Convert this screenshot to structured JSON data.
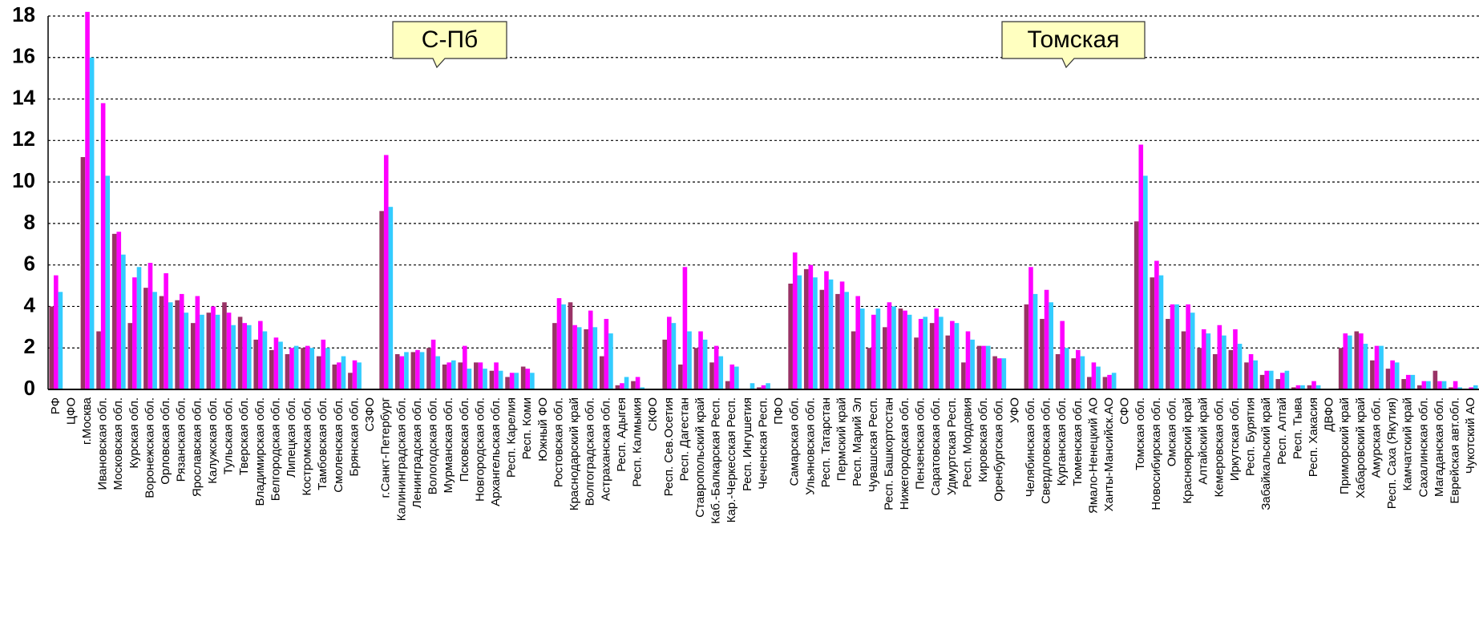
{
  "chart_data": {
    "type": "bar",
    "annotations": [
      "С-Пб",
      "Томская"
    ],
    "categories": [
      "РФ",
      "ЦФО",
      "г.Москва",
      "Ивановская обл.",
      "Московская обл.",
      "Курская обл.",
      "Воронежская обл.",
      "Орловская обл.",
      "Рязанская обл.",
      "Ярославская обл.",
      "Калужская обл.",
      "Тульская обл.",
      "Тверская обл.",
      "Владимирская обл.",
      "Белгородская обл.",
      "Липецкая обл.",
      "Костромская обл.",
      "Тамбовская обл.",
      "Смоленская обл.",
      "Брянская обл.",
      "СЗФО",
      "г.Санкт-Петербург",
      "Калининградская обл.",
      "Ленинградская обл.",
      "Вологодская обл.",
      "Мурманская обл.",
      "Псковская обл.",
      "Новгородская обл.",
      "Архангельская обл.",
      "Респ. Карелия",
      "Респ. Коми",
      "Южный ФО",
      "Ростовская обл.",
      "Краснодарский край",
      "Волгоградская обл.",
      "Астраханская обл.",
      "Респ. Адыгея",
      "Респ. Калмыкия",
      "СКФО",
      "Респ. Сев.Осетия",
      "Респ. Дагестан",
      "Ставропольский край",
      "Каб.-Балкарская Респ.",
      "Кар.-Черкесская Респ.",
      "Респ. Ингушетия",
      "Чеченская Респ.",
      "ПФО",
      "Самарская обл.",
      "Ульяновская обл.",
      "Респ. Татарстан",
      "Пермский край",
      "Респ. Марий Эл",
      "Чувашская Респ.",
      "Респ. Башкортостан",
      "Нижегородская обл.",
      "Пензенская обл.",
      "Саратовская обл.",
      "Удмуртская Респ.",
      "Респ. Мордовия",
      "Кировская обл.",
      "Оренбургская обл.",
      "УФО",
      "Челябинская обл.",
      "Свердловская обл.",
      "Курганская обл.",
      "Тюменская обл.",
      "Ямало-Ненецкий АО",
      "Ханты-Мансийск.АО",
      "СФО",
      "Томская обл.",
      "Новосибирская обл.",
      "Омская обл.",
      "Красноярский край",
      "Алтайский край",
      "Кемеровская обл.",
      "Иркутская обл.",
      "Респ. Бурятия",
      "Забайкальский край",
      "Респ. Алтай",
      "Респ. Тыва",
      "Респ. Хакасия",
      "ДВФО",
      "Приморский край",
      "Хабаровский край",
      "Амурская обл.",
      "Респ. Саха (Якутия)",
      "Камчатский край",
      "Сахалинская обл.",
      "Магаданская обл.",
      "Еврейская авт.обл.",
      "Чукотский АО"
    ],
    "series": [
      {
        "color": "#993366",
        "values": [
          4.0,
          null,
          11.2,
          2.8,
          7.5,
          3.2,
          4.9,
          4.5,
          4.3,
          3.2,
          3.7,
          4.2,
          3.5,
          2.4,
          1.9,
          1.7,
          2.0,
          1.6,
          1.2,
          0.8,
          null,
          8.6,
          1.7,
          1.8,
          2.0,
          1.2,
          1.3,
          1.3,
          0.9,
          0.6,
          1.1,
          null,
          3.2,
          4.2,
          2.9,
          1.6,
          0.2,
          0.4,
          null,
          2.4,
          1.2,
          2.0,
          1.3,
          0.4,
          0,
          0.1,
          null,
          5.1,
          5.8,
          4.8,
          4.6,
          2.8,
          2.0,
          3.0,
          3.9,
          2.5,
          3.2,
          2.6,
          1.3,
          2.1,
          1.6,
          null,
          4.1,
          3.4,
          1.7,
          1.5,
          0.6,
          0.6,
          null,
          8.1,
          5.4,
          3.4,
          2.8,
          2.0,
          1.7,
          1.9,
          1.3,
          0.7,
          0.5,
          0.1,
          0.2,
          null,
          2.0,
          2.8,
          1.4,
          1.0,
          0.5,
          0.2,
          0.9,
          0.1,
          0
        ]
      },
      {
        "color": "#ff00ff",
        "values": [
          5.5,
          null,
          18.2,
          13.8,
          7.6,
          5.4,
          6.1,
          5.6,
          4.6,
          4.5,
          4.0,
          3.7,
          3.2,
          3.3,
          2.5,
          2.0,
          2.1,
          2.4,
          1.3,
          1.4,
          null,
          11.3,
          1.6,
          1.9,
          2.4,
          1.3,
          2.1,
          1.3,
          1.3,
          0.8,
          1.0,
          null,
          4.4,
          3.1,
          3.8,
          3.4,
          0.3,
          0.6,
          null,
          3.5,
          5.9,
          2.8,
          2.1,
          1.2,
          0,
          0.2,
          null,
          6.6,
          6.0,
          5.7,
          5.2,
          4.5,
          3.6,
          4.2,
          3.8,
          3.4,
          3.9,
          3.3,
          2.8,
          2.1,
          1.5,
          null,
          5.9,
          4.8,
          3.3,
          1.9,
          1.3,
          0.7,
          null,
          11.8,
          6.2,
          4.1,
          4.1,
          2.9,
          3.1,
          2.9,
          1.7,
          0.9,
          0.8,
          0.2,
          0.4,
          null,
          2.7,
          2.7,
          2.1,
          1.4,
          0.7,
          0.4,
          0.4,
          0.4,
          0.1
        ]
      },
      {
        "color": "#33ccff",
        "values": [
          4.7,
          null,
          16.0,
          10.3,
          6.5,
          5.9,
          4.7,
          4.2,
          3.7,
          3.6,
          3.6,
          3.1,
          3.1,
          2.8,
          2.3,
          2.1,
          2.0,
          2.0,
          1.6,
          1.3,
          null,
          8.8,
          1.8,
          1.8,
          1.6,
          1.4,
          1.0,
          1.0,
          0.9,
          0.8,
          0.8,
          null,
          4.1,
          3.0,
          3.0,
          2.7,
          0.6,
          0.1,
          null,
          3.2,
          2.8,
          2.4,
          1.6,
          1.1,
          0.3,
          0.3,
          null,
          5.5,
          5.4,
          5.3,
          4.7,
          3.9,
          3.9,
          4.0,
          3.6,
          3.5,
          3.5,
          3.2,
          2.4,
          2.1,
          1.5,
          null,
          4.6,
          4.2,
          2.0,
          1.6,
          1.1,
          0.8,
          null,
          10.3,
          5.5,
          4.1,
          3.7,
          2.7,
          2.6,
          2.2,
          1.4,
          0.9,
          0.9,
          0.2,
          0.2,
          null,
          2.6,
          2.2,
          2.1,
          1.3,
          0.7,
          0.4,
          0.4,
          0.1,
          0.2
        ]
      }
    ],
    "ylim": [
      0,
      18
    ],
    "yticks": [
      0,
      2,
      4,
      6,
      8,
      10,
      12,
      14,
      16,
      18
    ],
    "grid": true
  }
}
